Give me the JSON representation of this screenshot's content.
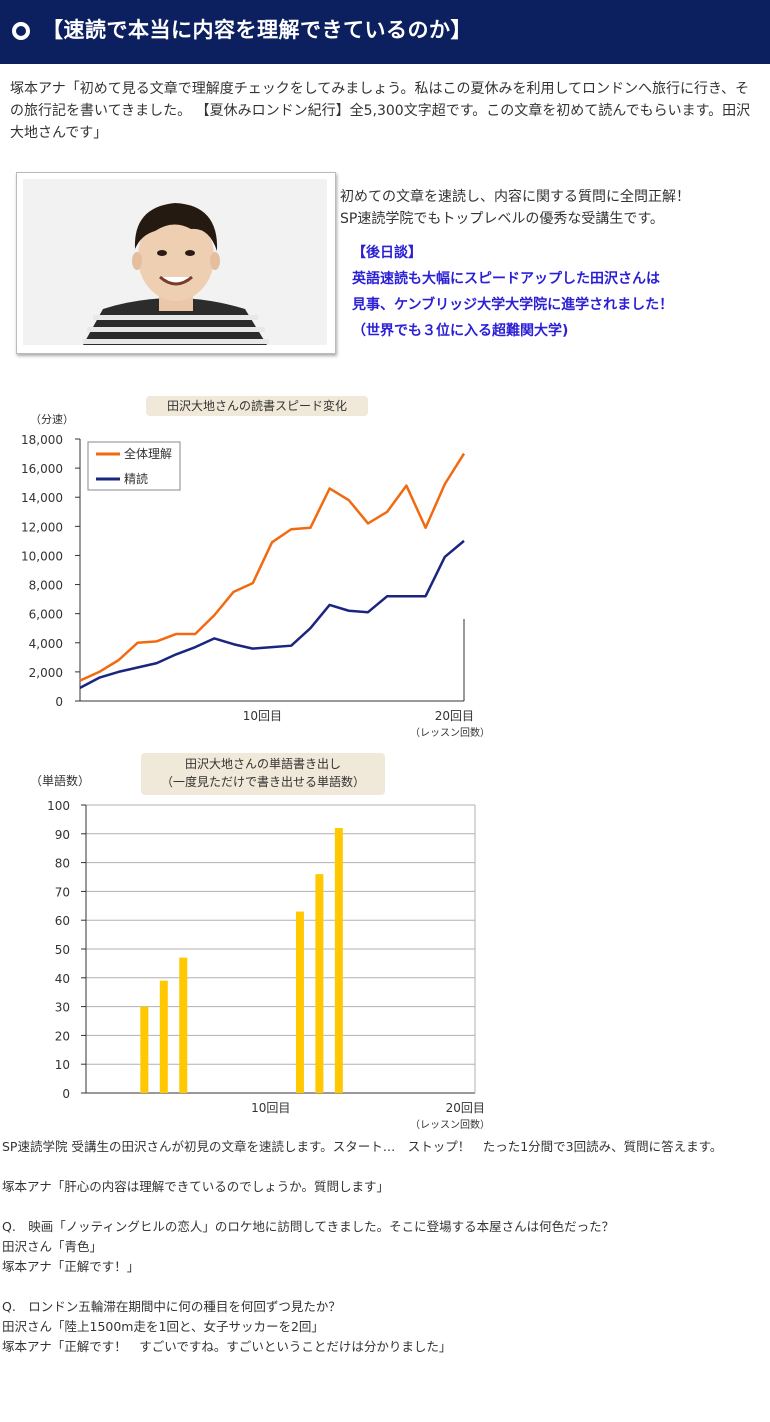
{
  "header": {
    "title": "【速読で本当に内容を理解できているのか】"
  },
  "intro": "塚本アナ「初めて見る文章で理解度チェックをしてみましょう。私はこの夏休みを利用してロンドンへ旅行に行き、その旅行記を書いてきました。 【夏休みロンドン紀行】全5,300文字超です。この文章を初めて読んでもらいます。田沢 大地さんです」",
  "profile": {
    "line1": "初めての文章を速読し、内容に関する質問に全問正解！",
    "line2": "SP速読学院でもトップレベルの優秀な受講生です。",
    "after": [
      "【後日談】",
      "英語速読も大幅にスピードアップした田沢さんは",
      "見事、ケンブリッジ大学大学院に進学されました！",
      "（世界でも３位に入る超難関大学)"
    ]
  },
  "chart_data": [
    {
      "type": "line",
      "title": "田沢大地さんの読書スピード変化",
      "ylabel": "（分速）",
      "xlabel": "（レッスン回数）",
      "ylim": [
        0,
        18000
      ],
      "xlim": [
        0,
        20
      ],
      "yticks": [
        "0",
        "2,000",
        "4,000",
        "6,000",
        "8,000",
        "10,000",
        "12,000",
        "14,000",
        "16,000",
        "18,000"
      ],
      "xticks": [
        {
          "x": 9.5,
          "label": "10回目"
        },
        {
          "x": 19.5,
          "label": "20回目"
        }
      ],
      "legend": "top-left",
      "x": [
        0,
        1,
        2,
        3,
        4,
        5,
        6,
        7,
        8,
        9,
        10,
        11,
        12,
        13,
        14,
        15,
        16,
        17,
        18,
        19,
        20
      ],
      "series": [
        {
          "name": "全体理解",
          "color": "#f26a10",
          "values": [
            1400,
            2000,
            2800,
            4000,
            4100,
            4600,
            4600,
            5900,
            7500,
            8100,
            10900,
            11800,
            11900,
            14600,
            13800,
            12200,
            13000,
            14800,
            11900,
            14900,
            17000
          ]
        },
        {
          "name": "精読",
          "color": "#1a2580",
          "values": [
            900,
            1600,
            2000,
            2300,
            2600,
            3200,
            3700,
            4300,
            3900,
            3600,
            3700,
            3800,
            5000,
            6600,
            6200,
            6100,
            7200,
            7200,
            7200,
            9900,
            11000
          ]
        }
      ]
    },
    {
      "type": "bar",
      "title": "田沢大地さんの単語書き出し",
      "subtitle": "（一度見ただけで書き出せる単語数）",
      "ylabel": "（単語数）",
      "xlabel": "（レッスン回数）",
      "ylim": [
        0,
        100
      ],
      "xlim": [
        0,
        20
      ],
      "yticks": [
        "0",
        "10",
        "20",
        "30",
        "40",
        "50",
        "60",
        "70",
        "80",
        "90",
        "100"
      ],
      "xticks": [
        {
          "x": 9.5,
          "label": "10回目"
        },
        {
          "x": 19.5,
          "label": "20回目"
        }
      ],
      "color": "#ffc800",
      "bars": [
        {
          "x": 3,
          "value": 30
        },
        {
          "x": 4,
          "value": 39
        },
        {
          "x": 5,
          "value": 47
        },
        {
          "x": 11,
          "value": 63
        },
        {
          "x": 12,
          "value": 76
        },
        {
          "x": 13,
          "value": 92
        }
      ]
    }
  ],
  "body": {
    "p1": "SP速読学院 受講生の田沢さんが初見の文章を速読します。スタート…　ストップ！　たった1分間で3回読み、質問に答えます。",
    "p2": "塚本アナ「肝心の内容は理解できているのでしょうか。質問します」",
    "q1": "Q.　映画「ノッティングヒルの恋人」のロケ地に訪問してきました。そこに登場する本屋さんは何色だった？",
    "a1": "田沢さん「青色」",
    "r1": "塚本アナ「正解です！」",
    "q2": "Q.　ロンドン五輪滞在期間中に何の種目を何回ずつ見たか？",
    "a2": "田沢さん「陸上1500m走を1回と、女子サッカーを2回」",
    "r2": "塚本アナ「正解です！　すごいですね。すごいということだけは分かりました」"
  }
}
